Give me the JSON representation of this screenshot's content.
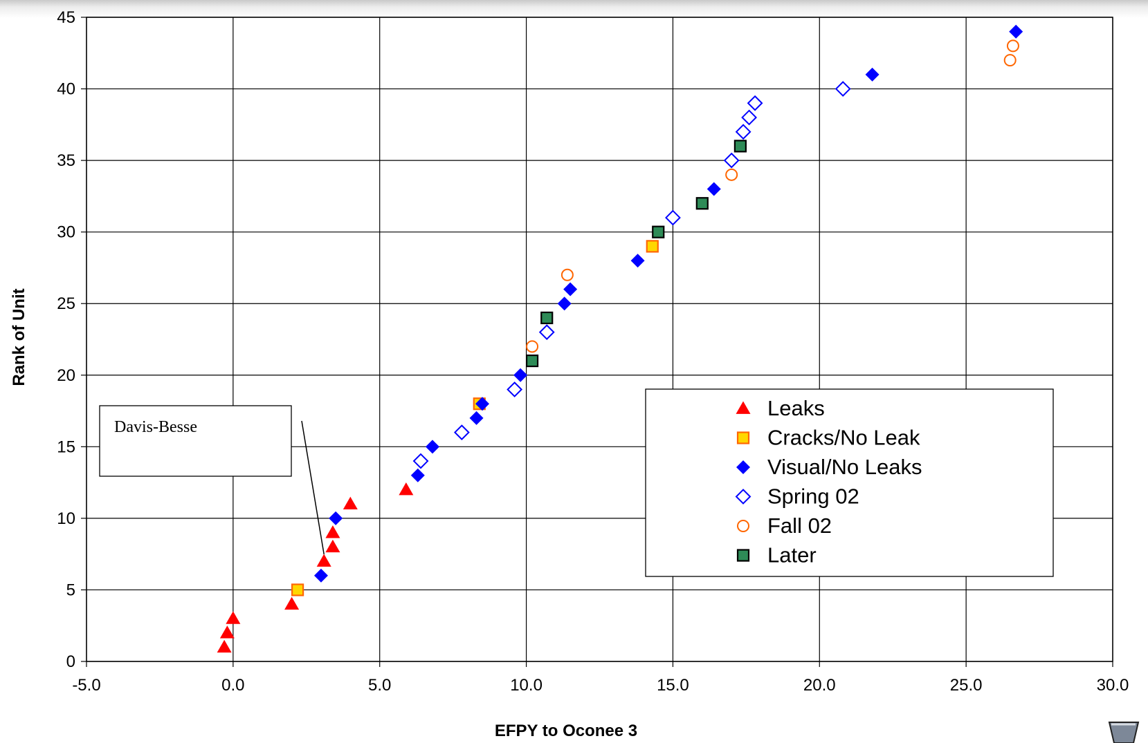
{
  "chart_data": {
    "type": "scatter",
    "xlabel": "EFPY to Oconee 3",
    "ylabel": "Rank of Unit",
    "xlim": [
      -5.0,
      30.0
    ],
    "ylim": [
      0,
      45
    ],
    "x_ticks": [
      "-5.0",
      "0.0",
      "5.0",
      "10.0",
      "15.0",
      "20.0",
      "25.0",
      "30.0"
    ],
    "y_ticks": [
      "0",
      "5",
      "10",
      "15",
      "20",
      "25",
      "30",
      "35",
      "40",
      "45"
    ],
    "grid": true,
    "legend_position": "lower-right",
    "series": [
      {
        "name": "Leaks",
        "marker": "triangle",
        "color": "#ff0000",
        "points": [
          [
            -0.3,
            1
          ],
          [
            -0.2,
            2
          ],
          [
            0.0,
            3
          ],
          [
            2.0,
            4
          ],
          [
            3.1,
            7
          ],
          [
            3.4,
            8
          ],
          [
            3.4,
            9
          ],
          [
            4.0,
            11
          ],
          [
            5.9,
            12
          ]
        ]
      },
      {
        "name": "Cracks/No Leak",
        "marker": "square-open",
        "color": "#ffd700",
        "edge_color": "#ff6600",
        "points": [
          [
            2.2,
            5
          ],
          [
            8.4,
            18
          ],
          [
            14.3,
            29
          ]
        ]
      },
      {
        "name": "Visual/No Leaks",
        "marker": "diamond",
        "color": "#0000ff",
        "points": [
          [
            3.0,
            6
          ],
          [
            3.5,
            10
          ],
          [
            6.3,
            13
          ],
          [
            6.8,
            15
          ],
          [
            8.3,
            17
          ],
          [
            8.5,
            18
          ],
          [
            9.8,
            20
          ],
          [
            11.3,
            25
          ],
          [
            11.5,
            26
          ],
          [
            13.8,
            28
          ],
          [
            16.4,
            33
          ],
          [
            21.8,
            41
          ],
          [
            26.7,
            44
          ]
        ]
      },
      {
        "name": "Spring 02",
        "marker": "diamond-open",
        "color": "#0000ff",
        "points": [
          [
            6.4,
            14
          ],
          [
            7.8,
            16
          ],
          [
            9.6,
            19
          ],
          [
            10.7,
            23
          ],
          [
            15.0,
            31
          ],
          [
            17.0,
            35
          ],
          [
            17.4,
            37
          ],
          [
            17.6,
            38
          ],
          [
            17.8,
            39
          ],
          [
            20.8,
            40
          ]
        ]
      },
      {
        "name": "Fall 02",
        "marker": "circle-open",
        "color": "#ff6600",
        "points": [
          [
            10.2,
            22
          ],
          [
            11.4,
            27
          ],
          [
            17.0,
            34
          ],
          [
            26.5,
            42
          ],
          [
            26.6,
            43
          ]
        ]
      },
      {
        "name": "Later",
        "marker": "square",
        "color": "#2e8b57",
        "points": [
          [
            10.2,
            21
          ],
          [
            10.7,
            24
          ],
          [
            14.5,
            30
          ],
          [
            16.0,
            32
          ],
          [
            17.3,
            36
          ]
        ]
      }
    ],
    "annotations": [
      {
        "text": "Davis-Besse",
        "target": [
          3.1,
          7
        ]
      }
    ]
  }
}
